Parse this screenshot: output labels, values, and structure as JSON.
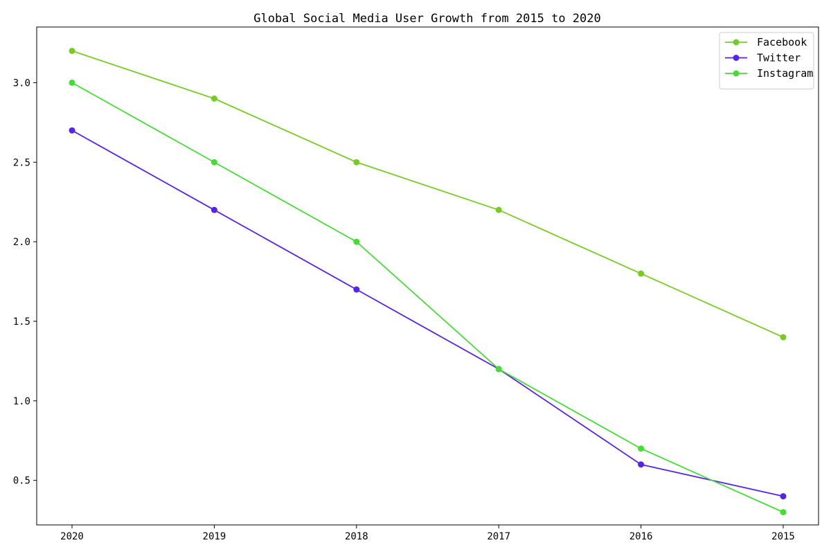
{
  "chart_data": {
    "type": "line",
    "title": "Global Social Media User Growth from 2015 to 2020",
    "xlabel": "",
    "ylabel": "",
    "categories": [
      "2020",
      "2019",
      "2018",
      "2017",
      "2016",
      "2015"
    ],
    "series": [
      {
        "name": "Facebook",
        "color": "#76cc22",
        "values": [
          3.2,
          2.9,
          2.5,
          2.2,
          1.8,
          1.4
        ]
      },
      {
        "name": "Twitter",
        "color": "#5522ee",
        "values": [
          2.7,
          2.2,
          1.7,
          1.2,
          0.6,
          0.4
        ]
      },
      {
        "name": "Instagram",
        "color": "#44dd33",
        "values": [
          3.0,
          2.5,
          2.0,
          1.2,
          0.7,
          0.3
        ]
      }
    ],
    "ylim": [
      0.22,
      3.35
    ],
    "yticks": [
      "0.5",
      "1.0",
      "1.5",
      "2.0",
      "2.5",
      "3.0"
    ],
    "grid": false,
    "legend_position": "top-right"
  }
}
